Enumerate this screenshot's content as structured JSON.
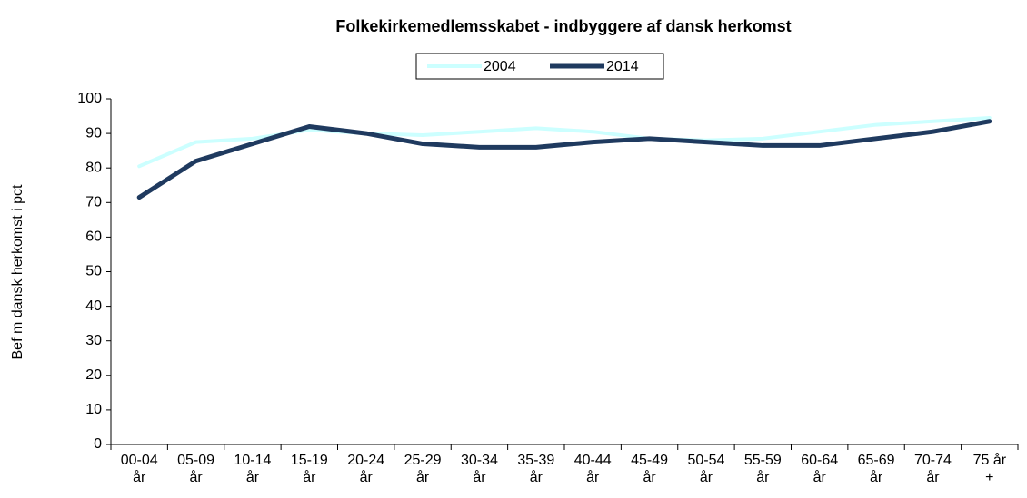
{
  "chart_data": {
    "type": "line",
    "title": "Folkekirkemedlemsskabet  -  indbyggere af dansk herkomst",
    "y_label": "Bef m dansk herkomst i pct",
    "categories": [
      "00-04 år",
      "05-09 år",
      "10-14 år",
      "15-19 år",
      "20-24 år",
      "25-29 år",
      "30-34 år",
      "35-39 år",
      "40-44 år",
      "45-49 år",
      "50-54 år",
      "55-59 år",
      "60-64 år",
      "65-69 år",
      "70-74 år",
      "75 år +"
    ],
    "series": [
      {
        "name": "2004",
        "color": "#ccffff",
        "values": [
          80.5,
          87.5,
          88.5,
          91,
          90,
          89.5,
          90.5,
          91.5,
          90.5,
          88.5,
          88,
          88.5,
          90.5,
          92.5,
          93.5,
          94.5
        ]
      },
      {
        "name": "2014",
        "color": "#1f3a5f",
        "values": [
          71.5,
          82,
          87,
          92,
          90,
          87,
          86,
          86,
          87.5,
          88.5,
          87.5,
          86.5,
          86.5,
          88.5,
          90.5,
          93.5
        ]
      }
    ],
    "ylim": [
      0,
      100
    ],
    "yticks": [
      0,
      10,
      20,
      30,
      40,
      50,
      60,
      70,
      80,
      90,
      100
    ],
    "legend": "top",
    "grid": false
  }
}
